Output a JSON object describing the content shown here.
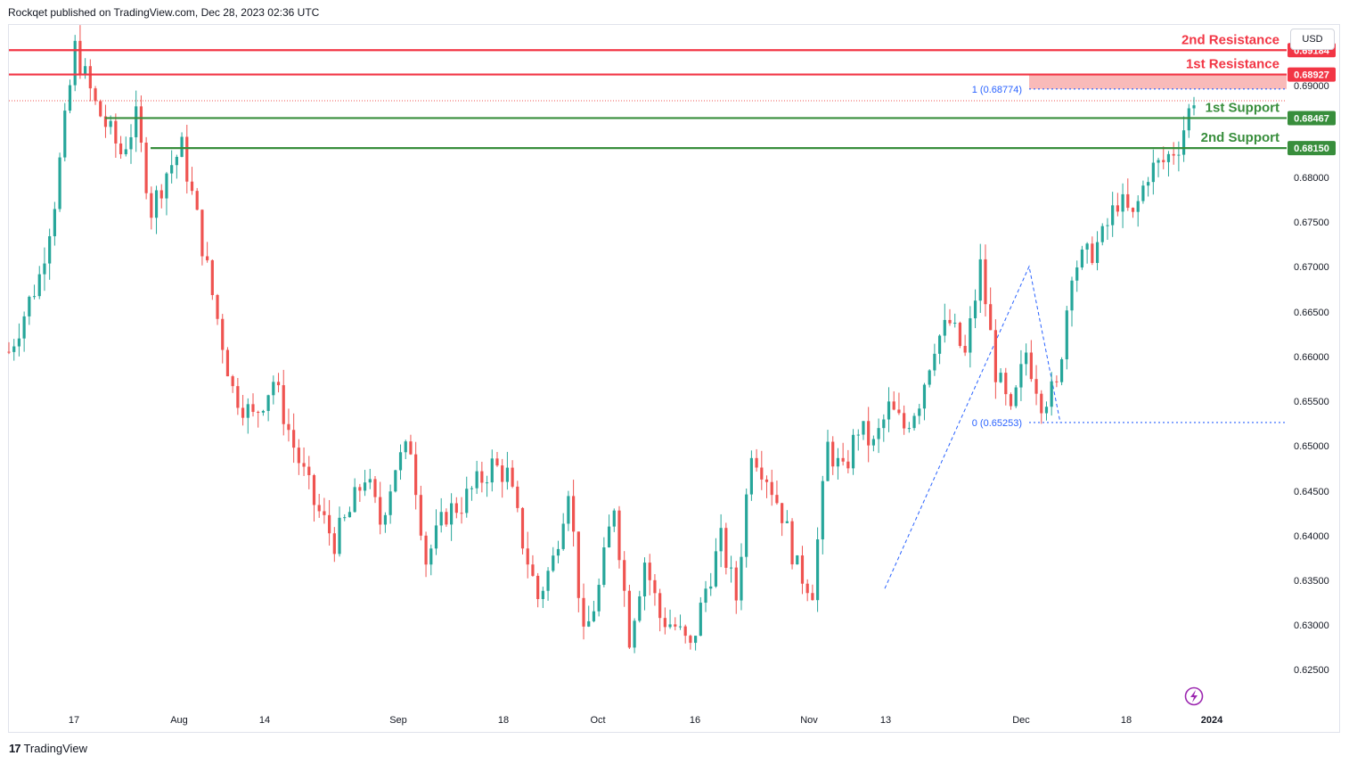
{
  "header": {
    "published": "Rockqet published on TradingView.com, Dec 28, 2023 02:36 UTC"
  },
  "currency_label": "USD",
  "footer": {
    "brand": "TradingView"
  },
  "colors": {
    "up": "#26a69a",
    "down": "#ef5350",
    "resistance": "#f23645",
    "support": "#388e3c",
    "fib": "#2962ff",
    "zone": "#f7a9a8"
  },
  "icons": {
    "footer_logo": "tradingview-logo-icon",
    "replay": "lightning-icon"
  },
  "chart_data": {
    "type": "candlestick",
    "title": "",
    "xlabel": "",
    "ylabel": "",
    "ylim": [
      0.6225,
      0.6945
    ],
    "y_ticks": [
      "0.69000",
      "0.68000",
      "0.67500",
      "0.67000",
      "0.66500",
      "0.66000",
      "0.65500",
      "0.65000",
      "0.64500",
      "0.64000",
      "0.63500",
      "0.63000",
      "0.62500"
    ],
    "x_ticks": [
      "17",
      "Aug",
      "14",
      "Sep",
      "18",
      "Oct",
      "16",
      "Nov",
      "13",
      "Dec",
      "18",
      "2024"
    ],
    "path": [
      [
        0,
        0.66
      ],
      [
        6,
        0.668
      ],
      [
        9,
        0.676
      ],
      [
        13,
        0.692
      ],
      [
        17,
        0.686
      ],
      [
        22,
        0.681
      ],
      [
        25,
        0.6845
      ],
      [
        28,
        0.675
      ],
      [
        31,
        0.679
      ],
      [
        34,
        0.6815
      ],
      [
        37,
        0.674
      ],
      [
        40,
        0.666
      ],
      [
        44,
        0.656
      ],
      [
        48,
        0.653
      ],
      [
        52,
        0.657
      ],
      [
        56,
        0.65
      ],
      [
        60,
        0.644
      ],
      [
        64,
        0.64
      ],
      [
        67,
        0.643
      ],
      [
        70,
        0.647
      ],
      [
        73,
        0.642
      ],
      [
        76,
        0.648
      ],
      [
        79,
        0.65
      ],
      [
        82,
        0.638
      ],
      [
        86,
        0.643
      ],
      [
        89,
        0.644
      ],
      [
        92,
        0.646
      ],
      [
        95,
        0.648
      ],
      [
        98,
        0.647
      ],
      [
        101,
        0.64
      ],
      [
        104,
        0.634
      ],
      [
        107,
        0.638
      ],
      [
        110,
        0.646
      ],
      [
        113,
        0.6295
      ],
      [
        116,
        0.635
      ],
      [
        119,
        0.644
      ],
      [
        122,
        0.63
      ],
      [
        125,
        0.638
      ],
      [
        128,
        0.632
      ],
      [
        131,
        0.631
      ],
      [
        134,
        0.6285
      ],
      [
        137,
        0.635
      ],
      [
        140,
        0.64
      ],
      [
        143,
        0.634
      ],
      [
        146,
        0.65
      ],
      [
        149,
        0.647
      ],
      [
        152,
        0.643
      ],
      [
        155,
        0.637
      ],
      [
        158,
        0.635
      ],
      [
        161,
        0.65
      ],
      [
        164,
        0.647
      ],
      [
        167,
        0.652
      ],
      [
        170,
        0.65
      ],
      [
        173,
        0.654
      ],
      [
        176,
        0.652
      ],
      [
        179,
        0.655
      ],
      [
        182,
        0.661
      ],
      [
        185,
        0.663
      ],
      [
        188,
        0.6595
      ],
      [
        191,
        0.669
      ],
      [
        194,
        0.658
      ],
      [
        197,
        0.653
      ],
      [
        200,
        0.66
      ],
      [
        203,
        0.655
      ],
      [
        206,
        0.656
      ],
      [
        209,
        0.669
      ],
      [
        212,
        0.67
      ],
      [
        215,
        0.672
      ],
      [
        218,
        0.676
      ],
      [
        221,
        0.674
      ],
      [
        224,
        0.679
      ],
      [
        227,
        0.68
      ],
      [
        230,
        0.682
      ],
      [
        233,
        0.687
      ]
    ],
    "levels": [
      {
        "name": "2nd Resistance",
        "value": 0.69184,
        "type": "resistance"
      },
      {
        "name": "1st Resistance",
        "value": 0.68927,
        "type": "resistance"
      },
      {
        "name": "1st Support",
        "value": 0.68467,
        "type": "support"
      },
      {
        "name": "2nd Support",
        "value": 0.6815,
        "type": "support"
      }
    ],
    "fib": {
      "level_1_label": "1 (0.68774)",
      "level_1": 0.68774,
      "level_0_label": "0 (0.65253)",
      "level_0": 0.65253
    },
    "last_price": 0.687,
    "grid": false
  }
}
